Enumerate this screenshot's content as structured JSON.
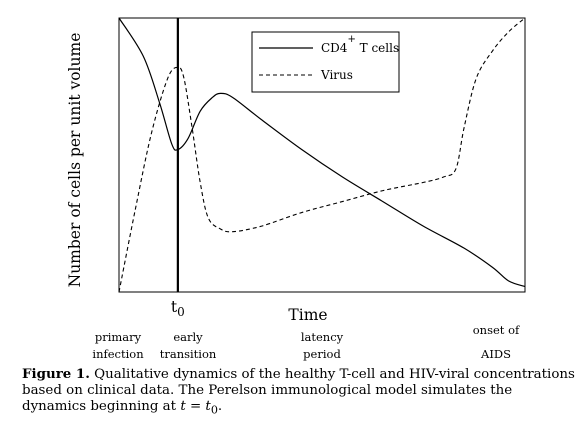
{
  "chart_data": {
    "type": "line",
    "title": "",
    "xlabel": "Time",
    "ylabel": "Number of cells per unit volume",
    "xlim": [
      0,
      100
    ],
    "ylim": [
      0,
      100
    ],
    "marker": {
      "label": "t0",
      "x": 14.5
    },
    "phases": [
      {
        "line1": "primary",
        "line2": "infection",
        "x": 0
      },
      {
        "line1": "early",
        "line2": "transition",
        "x": 17
      },
      {
        "line1": "latency",
        "line2": "period",
        "x": 50
      },
      {
        "line1": "onset of",
        "line2": "AIDS",
        "x": 92
      }
    ],
    "legend": {
      "placement": "top-right",
      "cd4_base": "CD4",
      "cd4_sup": "+",
      "cd4_rest": " T cells",
      "virus": "Virus"
    },
    "series": [
      {
        "name": "CD4+ T cells",
        "style": "solid",
        "points": [
          [
            0,
            100
          ],
          [
            6,
            86
          ],
          [
            10,
            69
          ],
          [
            13,
            54
          ],
          [
            14.5,
            52
          ],
          [
            17,
            56
          ],
          [
            20,
            66
          ],
          [
            23,
            71
          ],
          [
            25,
            72.5
          ],
          [
            28,
            71
          ],
          [
            35,
            63
          ],
          [
            45,
            52
          ],
          [
            55,
            42
          ],
          [
            65,
            33
          ],
          [
            75,
            24
          ],
          [
            85,
            16
          ],
          [
            92,
            9
          ],
          [
            96,
            4
          ],
          [
            100,
            2
          ]
        ]
      },
      {
        "name": "Virus",
        "style": "dashed",
        "points": [
          [
            0,
            0
          ],
          [
            4,
            30
          ],
          [
            8,
            58
          ],
          [
            12,
            78
          ],
          [
            14.5,
            82
          ],
          [
            16,
            78
          ],
          [
            18,
            60
          ],
          [
            20,
            40
          ],
          [
            22,
            27
          ],
          [
            25,
            23
          ],
          [
            28,
            22
          ],
          [
            35,
            24
          ],
          [
            45,
            29
          ],
          [
            55,
            33
          ],
          [
            65,
            37
          ],
          [
            75,
            40
          ],
          [
            80,
            42
          ],
          [
            83,
            45
          ],
          [
            85,
            60
          ],
          [
            88,
            78
          ],
          [
            92,
            88
          ],
          [
            96,
            95
          ],
          [
            100,
            100
          ]
        ]
      }
    ]
  },
  "caption": {
    "label": "Figure 1.",
    "text": " Qualitative dynamics of the healthy T-cell and HIV-viral concentrations based on clinical data.  The Perelson immunological model simulates the dynamics beginning at ",
    "math": "t = t",
    "math_sub": "0",
    "end": "."
  }
}
